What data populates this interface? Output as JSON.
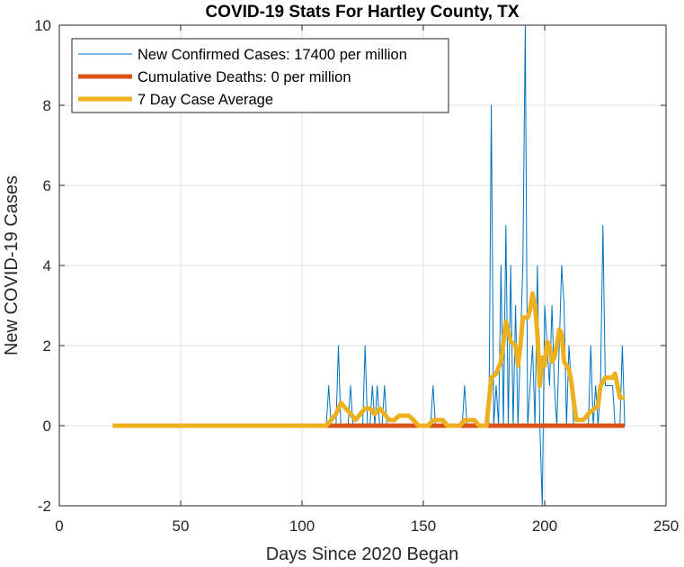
{
  "chart_data": {
    "type": "line",
    "title": "COVID-19 Stats For Hartley County, TX",
    "xlabel": "Days Since 2020 Began",
    "ylabel": "New COVID-19 Cases",
    "xlim": [
      0,
      250
    ],
    "ylim": [
      -2,
      10
    ],
    "xticks": [
      0,
      50,
      100,
      150,
      200,
      250
    ],
    "yticks": [
      -2,
      0,
      2,
      4,
      6,
      8,
      10
    ],
    "grid": true,
    "legend_position": "top-left",
    "series": [
      {
        "name": "New Confirmed Cases: 17400 per million",
        "color": "#0072BD",
        "line_width": "thin",
        "points": [
          [
            22,
            0
          ],
          [
            110,
            0
          ],
          [
            111,
            1
          ],
          [
            112,
            0
          ],
          [
            114,
            0
          ],
          [
            115,
            2
          ],
          [
            116,
            0
          ],
          [
            119,
            0
          ],
          [
            120,
            1
          ],
          [
            121,
            0
          ],
          [
            125,
            0
          ],
          [
            126,
            2
          ],
          [
            127,
            0
          ],
          [
            128,
            0
          ],
          [
            129,
            1
          ],
          [
            130,
            0
          ],
          [
            131,
            1
          ],
          [
            132,
            0
          ],
          [
            133,
            0
          ],
          [
            134,
            1
          ],
          [
            135,
            0
          ],
          [
            153,
            0
          ],
          [
            154,
            1
          ],
          [
            155,
            0
          ],
          [
            166,
            0
          ],
          [
            167,
            1
          ],
          [
            168,
            0
          ],
          [
            177,
            0
          ],
          [
            178,
            8
          ],
          [
            179,
            0
          ],
          [
            180,
            1
          ],
          [
            181,
            0
          ],
          [
            182,
            4
          ],
          [
            183,
            0
          ],
          [
            184,
            5
          ],
          [
            185,
            0
          ],
          [
            186,
            4
          ],
          [
            187,
            0
          ],
          [
            188,
            3
          ],
          [
            189,
            0
          ],
          [
            190,
            2
          ],
          [
            191,
            4
          ],
          [
            192,
            10
          ],
          [
            193,
            0
          ],
          [
            194,
            1
          ],
          [
            195,
            2
          ],
          [
            196,
            0
          ],
          [
            197,
            4
          ],
          [
            198,
            0
          ],
          [
            199,
            -2
          ],
          [
            200,
            3
          ],
          [
            201,
            2
          ],
          [
            202,
            1
          ],
          [
            203,
            3
          ],
          [
            204,
            1
          ],
          [
            205,
            0
          ],
          [
            206,
            2
          ],
          [
            207,
            4
          ],
          [
            208,
            3
          ],
          [
            209,
            0
          ],
          [
            210,
            2
          ],
          [
            211,
            1
          ],
          [
            212,
            0
          ],
          [
            218,
            0
          ],
          [
            219,
            2
          ],
          [
            220,
            0
          ],
          [
            221,
            1
          ],
          [
            222,
            0
          ],
          [
            223,
            1
          ],
          [
            224,
            5
          ],
          [
            225,
            1
          ],
          [
            226,
            1
          ],
          [
            227,
            1
          ],
          [
            228,
            1
          ],
          [
            229,
            0
          ],
          [
            231,
            0
          ],
          [
            232,
            2
          ],
          [
            233,
            0
          ]
        ]
      },
      {
        "name": "Cumulative Deaths: 0 per million",
        "color": "#D95319",
        "line_width": "thick",
        "points": [
          [
            110,
            0
          ],
          [
            233,
            0
          ]
        ]
      },
      {
        "name": "7 Day Case Average",
        "color": "#EDB120",
        "line_width": "thick",
        "points": [
          [
            22,
            0
          ],
          [
            110,
            0
          ],
          [
            112,
            0.14
          ],
          [
            114,
            0.29
          ],
          [
            116,
            0.57
          ],
          [
            118,
            0.43
          ],
          [
            120,
            0.3
          ],
          [
            122,
            0.14
          ],
          [
            124,
            0.29
          ],
          [
            126,
            0.43
          ],
          [
            128,
            0.43
          ],
          [
            130,
            0.29
          ],
          [
            132,
            0.43
          ],
          [
            134,
            0.29
          ],
          [
            136,
            0.14
          ],
          [
            138,
            0.14
          ],
          [
            140,
            0.25
          ],
          [
            142,
            0.25
          ],
          [
            144,
            0.25
          ],
          [
            146,
            0.14
          ],
          [
            148,
            0
          ],
          [
            152,
            0
          ],
          [
            154,
            0.14
          ],
          [
            158,
            0.14
          ],
          [
            160,
            0
          ],
          [
            165,
            0
          ],
          [
            167,
            0.14
          ],
          [
            171,
            0.14
          ],
          [
            173,
            0
          ],
          [
            176,
            0
          ],
          [
            178,
            1.2
          ],
          [
            180,
            1.3
          ],
          [
            182,
            1.6
          ],
          [
            184,
            2.6
          ],
          [
            186,
            2.1
          ],
          [
            188,
            2.0
          ],
          [
            189,
            1.5
          ],
          [
            190,
            2.0
          ],
          [
            191,
            2.7
          ],
          [
            193,
            2.7
          ],
          [
            194,
            2.9
          ],
          [
            195,
            3.3
          ],
          [
            196,
            3.0
          ],
          [
            197,
            2.3
          ],
          [
            198,
            1.0
          ],
          [
            199,
            1.7
          ],
          [
            200,
            1.5
          ],
          [
            201,
            2.1
          ],
          [
            202,
            2.0
          ],
          [
            203,
            1.6
          ],
          [
            204,
            1.7
          ],
          [
            205,
            2.0
          ],
          [
            206,
            2.4
          ],
          [
            207,
            2.3
          ],
          [
            208,
            1.6
          ],
          [
            210,
            1.4
          ],
          [
            211,
            1.1
          ],
          [
            212,
            0.6
          ],
          [
            213,
            0.15
          ],
          [
            216,
            0.15
          ],
          [
            218,
            0.3
          ],
          [
            220,
            0.4
          ],
          [
            222,
            0.5
          ],
          [
            223,
            1.0
          ],
          [
            224,
            1.1
          ],
          [
            225,
            1.2
          ],
          [
            226,
            1.2
          ],
          [
            228,
            1.2
          ],
          [
            229,
            1.3
          ],
          [
            230,
            1.0
          ],
          [
            231,
            0.7
          ],
          [
            233,
            0.7
          ]
        ]
      }
    ]
  }
}
